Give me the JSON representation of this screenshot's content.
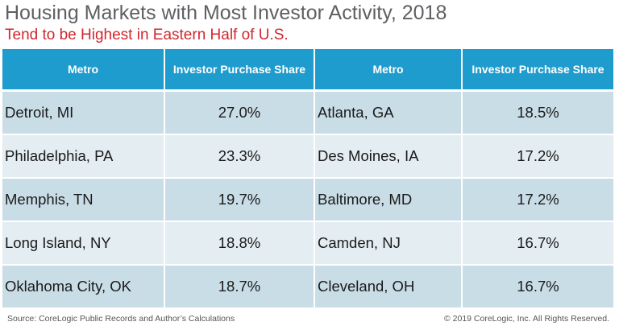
{
  "header": {
    "title": "Housing Markets with Most Investor Activity, 2018",
    "subtitle": "Tend to be Highest in Eastern Half of U.S."
  },
  "table": {
    "columns": [
      "Metro",
      "Investor Purchase Share",
      "Metro",
      "Investor Purchase Share"
    ],
    "rows": [
      [
        "Detroit, MI",
        "27.0%",
        "Atlanta, GA",
        "18.5%"
      ],
      [
        "Philadelphia, PA",
        "23.3%",
        "Des Moines, IA",
        "17.2%"
      ],
      [
        "Memphis, TN",
        "19.7%",
        "Baltimore, MD",
        "17.2%"
      ],
      [
        "Long Island, NY",
        "18.8%",
        "Camden, NJ",
        "16.7%"
      ],
      [
        "Oklahoma City, OK",
        "18.7%",
        "Cleveland, OH",
        "16.7%"
      ]
    ]
  },
  "footer": {
    "source": "Source: CoreLogic Public Records and Author’s Calculations",
    "copyright": "© 2019 CoreLogic, Inc. All Rights Reserved."
  },
  "colors": {
    "header_blue": "#1e9ccd",
    "row_dark": "#c9dde7",
    "row_light": "#e4edf2",
    "subtitle_red": "#d0272d",
    "title_gray": "#5f6064"
  }
}
